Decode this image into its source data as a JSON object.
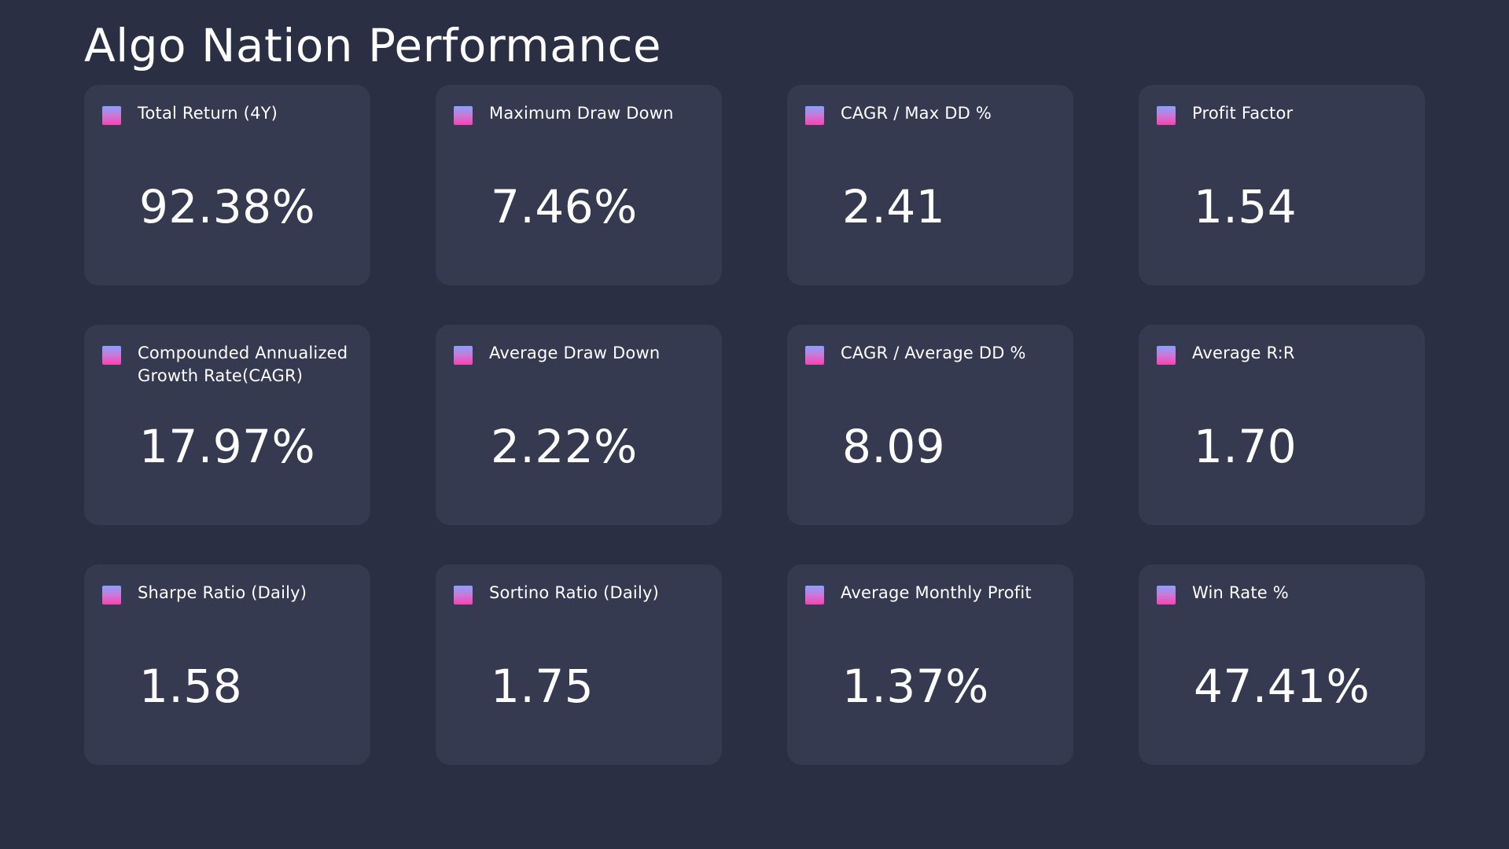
{
  "page": {
    "title": "Algo Nation Performance"
  },
  "theme": {
    "background": "#2b2f44",
    "card_background": "#363a51",
    "text": "#ffffff",
    "swatch_gradient": [
      "#8aa0ff",
      "#c77ad6",
      "#ff3fb3"
    ]
  },
  "metrics": [
    {
      "label": "Total Return (4Y)",
      "value": "92.38%",
      "icon": "legend-swatch-icon"
    },
    {
      "label": "Maximum Draw Down",
      "value": "7.46%",
      "icon": "legend-swatch-icon"
    },
    {
      "label": "CAGR / Max DD %",
      "value": "2.41",
      "icon": "legend-swatch-icon"
    },
    {
      "label": "Profit Factor",
      "value": "1.54",
      "icon": "legend-swatch-icon"
    },
    {
      "label": "Compounded Annualized Growth Rate(CAGR)",
      "value": "17.97%",
      "icon": "legend-swatch-icon"
    },
    {
      "label": "Average Draw Down",
      "value": "2.22%",
      "icon": "legend-swatch-icon"
    },
    {
      "label": "CAGR / Average DD %",
      "value": "8.09",
      "icon": "legend-swatch-icon"
    },
    {
      "label": "Average R:R",
      "value": "1.70",
      "icon": "legend-swatch-icon"
    },
    {
      "label": "Sharpe Ratio (Daily)",
      "value": "1.58",
      "icon": "legend-swatch-icon"
    },
    {
      "label": "Sortino Ratio (Daily)",
      "value": "1.75",
      "icon": "legend-swatch-icon"
    },
    {
      "label": "Average Monthly Profit",
      "value": "1.37%",
      "icon": "legend-swatch-icon"
    },
    {
      "label": "Win Rate %",
      "value": "47.41%",
      "icon": "legend-swatch-icon"
    }
  ]
}
